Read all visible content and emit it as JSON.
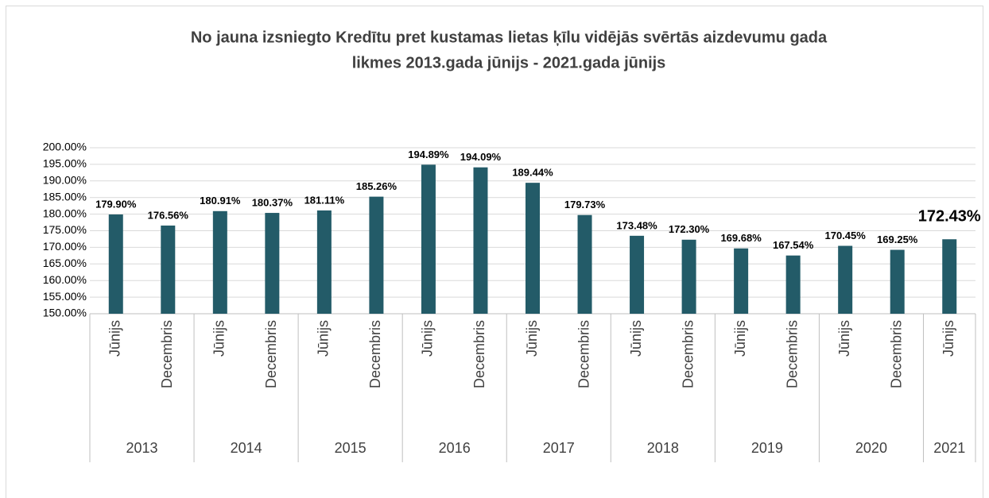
{
  "chart_data": {
    "type": "bar",
    "title": [
      "No jauna izsniegto Kredītu pret kustamas lietas ķīlu vidējās svērtās aizdevumu gada",
      "likmes 2013.gada jūnijs - 2021.gada jūnijs"
    ],
    "categories": [
      "Jūnijs",
      "Decembris",
      "Jūnijs",
      "Decembris",
      "Jūnijs",
      "Decembris",
      "Jūnijs",
      "Decembris",
      "Jūnijs",
      "Decembris",
      "Jūnijs",
      "Decembris",
      "Jūnijs",
      "Decembris",
      "Jūnijs",
      "Decembris",
      "Jūnijs"
    ],
    "years": [
      "2013",
      "2014",
      "2015",
      "2016",
      "2017",
      "2018",
      "2019",
      "2020",
      "2021"
    ],
    "values": [
      179.9,
      176.56,
      180.91,
      180.37,
      181.11,
      185.26,
      194.89,
      194.09,
      189.44,
      179.73,
      173.48,
      172.3,
      169.68,
      167.54,
      170.45,
      169.25,
      172.43
    ],
    "value_labels": [
      "179.90%",
      "176.56%",
      "180.91%",
      "180.37%",
      "181.11%",
      "185.26%",
      "194.89%",
      "194.09%",
      "189.44%",
      "179.73%",
      "173.48%",
      "172.30%",
      "169.68%",
      "167.54%",
      "170.45%",
      "169.25%",
      "172.43%"
    ],
    "color": "#235b68",
    "ylim": [
      150,
      200
    ],
    "yticks": [
      {
        "value": 150,
        "label": "150.00%"
      },
      {
        "value": 155,
        "label": "155.00%"
      },
      {
        "value": 160,
        "label": "160.00%"
      },
      {
        "value": 165,
        "label": "165.00%"
      },
      {
        "value": 170,
        "label": "170.00%"
      },
      {
        "value": 175,
        "label": "175.00%"
      },
      {
        "value": 180,
        "label": "180.00%"
      },
      {
        "value": 185,
        "label": "185.00%"
      },
      {
        "value": 190,
        "label": "190.00%"
      },
      {
        "value": 195,
        "label": "195.00%"
      },
      {
        "value": 200,
        "label": "200.00%"
      }
    ],
    "grid": true
  }
}
